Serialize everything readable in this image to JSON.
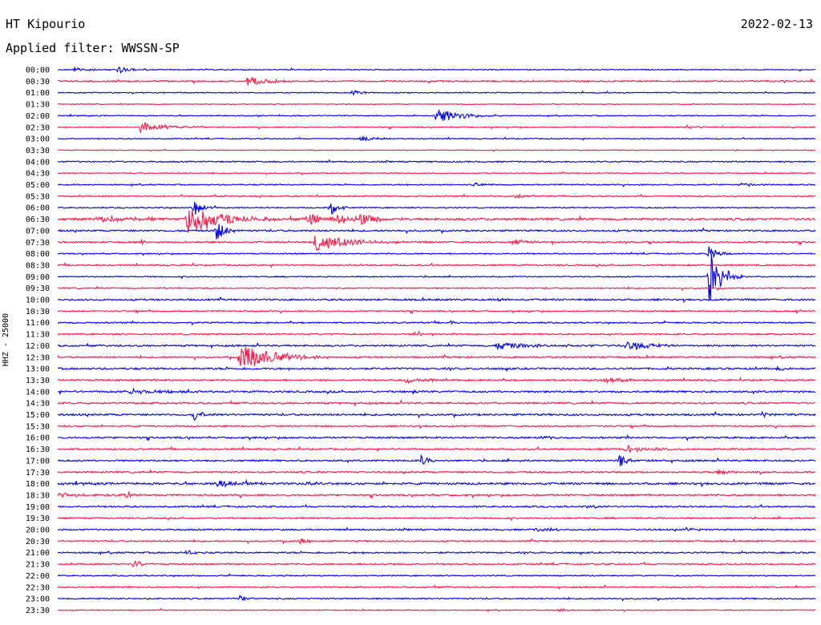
{
  "header": {
    "station": "HT Kipourio",
    "date": "2022-02-13",
    "filter_text": "Applied filter: WWSSN-SP"
  },
  "chart_data": {
    "type": "line",
    "title": "HT Kipourio",
    "subtitle": "Applied filter: WWSSN-SP",
    "ylabel": "HHZ - 25000",
    "xlabel": "",
    "grid": false,
    "series_colors": [
      "#0000ee",
      "#ff1744"
    ],
    "rows": [
      {
        "label": "00:00",
        "color": "#0000ee",
        "noise": 0.6,
        "events": [
          {
            "t": 0.02,
            "amp": 3,
            "dur": 0.02
          },
          {
            "t": 0.08,
            "amp": 4,
            "dur": 0.02
          }
        ]
      },
      {
        "label": "00:30",
        "color": "#ff1744",
        "noise": 0.9,
        "events": [
          {
            "t": 0.25,
            "amp": 6,
            "dur": 0.03
          },
          {
            "t": 0.3,
            "amp": 2,
            "dur": 0.01
          }
        ]
      },
      {
        "label": "01:00",
        "color": "#0000ee",
        "noise": 0.6,
        "events": [
          {
            "t": 0.39,
            "amp": 4,
            "dur": 0.01
          }
        ]
      },
      {
        "label": "01:30",
        "color": "#ff1744",
        "noise": 0.5,
        "events": []
      },
      {
        "label": "02:00",
        "color": "#0000ee",
        "noise": 0.6,
        "events": [
          {
            "t": 0.5,
            "amp": 10,
            "dur": 0.03
          }
        ]
      },
      {
        "label": "02:30",
        "color": "#ff1744",
        "noise": 0.7,
        "events": [
          {
            "t": 0.11,
            "amp": 7,
            "dur": 0.03
          },
          {
            "t": 0.83,
            "amp": 3,
            "dur": 0.01
          },
          {
            "t": 0.97,
            "amp": 2,
            "dur": 0.01
          }
        ]
      },
      {
        "label": "03:00",
        "color": "#0000ee",
        "noise": 0.6,
        "events": [
          {
            "t": 0.4,
            "amp": 3,
            "dur": 0.02
          }
        ]
      },
      {
        "label": "03:30",
        "color": "#ff1744",
        "noise": 0.5,
        "events": []
      },
      {
        "label": "04:00",
        "color": "#0000ee",
        "noise": 0.8,
        "events": []
      },
      {
        "label": "04:30",
        "color": "#ff1744",
        "noise": 0.6,
        "events": []
      },
      {
        "label": "05:00",
        "color": "#0000ee",
        "noise": 0.7,
        "events": [
          {
            "t": 0.55,
            "amp": 3,
            "dur": 0.01
          },
          {
            "t": 0.9,
            "amp": 2,
            "dur": 0.02
          }
        ]
      },
      {
        "label": "05:30",
        "color": "#ff1744",
        "noise": 0.8,
        "events": [
          {
            "t": 0.6,
            "amp": 3,
            "dur": 0.02
          }
        ]
      },
      {
        "label": "06:00",
        "color": "#0000ee",
        "noise": 0.7,
        "events": [
          {
            "t": 0.18,
            "amp": 12,
            "dur": 0.01
          },
          {
            "t": 0.36,
            "amp": 10,
            "dur": 0.01
          }
        ]
      },
      {
        "label": "06:30",
        "color": "#ff1744",
        "noise": 1.4,
        "events": [
          {
            "t": 0.05,
            "amp": 4,
            "dur": 0.06
          },
          {
            "t": 0.17,
            "amp": 22,
            "dur": 0.04
          },
          {
            "t": 0.33,
            "amp": 9,
            "dur": 0.02
          },
          {
            "t": 0.37,
            "amp": 9,
            "dur": 0.02
          },
          {
            "t": 0.4,
            "amp": 8,
            "dur": 0.02
          }
        ]
      },
      {
        "label": "07:00",
        "color": "#0000ee",
        "noise": 1.0,
        "events": [
          {
            "t": 0.21,
            "amp": 14,
            "dur": 0.01
          }
        ]
      },
      {
        "label": "07:30",
        "color": "#ff1744",
        "noise": 1.0,
        "events": [
          {
            "t": 0.11,
            "amp": 3,
            "dur": 0.01
          },
          {
            "t": 0.34,
            "amp": 12,
            "dur": 0.04
          },
          {
            "t": 0.6,
            "amp": 4,
            "dur": 0.02
          },
          {
            "t": 0.78,
            "amp": 2,
            "dur": 0.02
          }
        ]
      },
      {
        "label": "08:00",
        "color": "#0000ee",
        "noise": 0.7,
        "events": [
          {
            "t": 0.86,
            "amp": 14,
            "dur": 0.01
          }
        ]
      },
      {
        "label": "08:30",
        "color": "#ff1744",
        "noise": 0.9,
        "events": []
      },
      {
        "label": "09:00",
        "color": "#0000ee",
        "noise": 0.7,
        "events": [
          {
            "t": 0.86,
            "amp": 36,
            "dur": 0.015
          }
        ]
      },
      {
        "label": "09:30",
        "color": "#ff1744",
        "noise": 0.8,
        "events": [
          {
            "t": 0.14,
            "amp": 2,
            "dur": 0.01
          }
        ]
      },
      {
        "label": "10:00",
        "color": "#0000ee",
        "noise": 1.0,
        "events": [
          {
            "t": 0.58,
            "amp": 3,
            "dur": 0.01
          }
        ]
      },
      {
        "label": "10:30",
        "color": "#ff1744",
        "noise": 0.8,
        "events": [
          {
            "t": 0.97,
            "amp": 3,
            "dur": 0.01
          }
        ]
      },
      {
        "label": "11:00",
        "color": "#0000ee",
        "noise": 0.8,
        "events": [
          {
            "t": 0.52,
            "amp": 3,
            "dur": 0.01
          }
        ]
      },
      {
        "label": "11:30",
        "color": "#ff1744",
        "noise": 0.9,
        "events": [
          {
            "t": 0.47,
            "amp": 4,
            "dur": 0.02
          }
        ]
      },
      {
        "label": "12:00",
        "color": "#0000ee",
        "noise": 1.0,
        "events": [
          {
            "t": 0.58,
            "amp": 4,
            "dur": 0.05
          },
          {
            "t": 0.75,
            "amp": 6,
            "dur": 0.03
          }
        ]
      },
      {
        "label": "12:30",
        "color": "#ff1744",
        "noise": 1.0,
        "events": [
          {
            "t": 0.24,
            "amp": 18,
            "dur": 0.04
          }
        ]
      },
      {
        "label": "13:00",
        "color": "#0000ee",
        "noise": 1.1,
        "events": [
          {
            "t": 0.95,
            "amp": 3,
            "dur": 0.01
          }
        ]
      },
      {
        "label": "13:30",
        "color": "#ff1744",
        "noise": 1.0,
        "events": [
          {
            "t": 0.46,
            "amp": 4,
            "dur": 0.02
          },
          {
            "t": 0.72,
            "amp": 3,
            "dur": 0.03
          }
        ]
      },
      {
        "label": "14:00",
        "color": "#0000ee",
        "noise": 1.1,
        "events": [
          {
            "t": 0.09,
            "amp": 3,
            "dur": 0.05
          },
          {
            "t": 0.47,
            "amp": 3,
            "dur": 0.01
          }
        ]
      },
      {
        "label": "14:30",
        "color": "#ff1744",
        "noise": 1.1,
        "events": []
      },
      {
        "label": "15:00",
        "color": "#0000ee",
        "noise": 1.1,
        "events": [
          {
            "t": 0.18,
            "amp": 8,
            "dur": 0.01
          },
          {
            "t": 0.93,
            "amp": 3,
            "dur": 0.01
          }
        ]
      },
      {
        "label": "15:30",
        "color": "#ff1744",
        "noise": 0.9,
        "events": []
      },
      {
        "label": "16:00",
        "color": "#0000ee",
        "noise": 1.0,
        "events": [
          {
            "t": 0.64,
            "amp": 3,
            "dur": 0.01
          }
        ]
      },
      {
        "label": "16:30",
        "color": "#ff1744",
        "noise": 1.0,
        "events": [
          {
            "t": 0.75,
            "amp": 4,
            "dur": 0.03
          }
        ]
      },
      {
        "label": "17:00",
        "color": "#0000ee",
        "noise": 1.0,
        "events": [
          {
            "t": 0.48,
            "amp": 7,
            "dur": 0.01
          },
          {
            "t": 0.74,
            "amp": 7,
            "dur": 0.02
          }
        ]
      },
      {
        "label": "17:30",
        "color": "#ff1744",
        "noise": 1.0,
        "events": [
          {
            "t": 0.87,
            "amp": 3,
            "dur": 0.02
          }
        ]
      },
      {
        "label": "18:00",
        "color": "#0000ee",
        "noise": 1.2,
        "events": [
          {
            "t": 0.21,
            "amp": 6,
            "dur": 0.02
          },
          {
            "t": 0.33,
            "amp": 3,
            "dur": 0.01
          }
        ]
      },
      {
        "label": "18:30",
        "color": "#ff1744",
        "noise": 1.1,
        "events": [
          {
            "t": 0.0,
            "amp": 3,
            "dur": 0.04
          },
          {
            "t": 0.09,
            "amp": 5,
            "dur": 0.01
          }
        ]
      },
      {
        "label": "19:00",
        "color": "#0000ee",
        "noise": 0.9,
        "events": [
          {
            "t": 0.7,
            "amp": 3,
            "dur": 0.01
          }
        ]
      },
      {
        "label": "19:30",
        "color": "#ff1744",
        "noise": 0.9,
        "events": []
      },
      {
        "label": "20:00",
        "color": "#0000ee",
        "noise": 0.9,
        "events": [
          {
            "t": 0.63,
            "amp": 3,
            "dur": 0.02
          },
          {
            "t": 0.83,
            "amp": 3,
            "dur": 0.01
          }
        ]
      },
      {
        "label": "20:30",
        "color": "#ff1744",
        "noise": 0.9,
        "events": [
          {
            "t": 0.32,
            "amp": 4,
            "dur": 0.01
          }
        ]
      },
      {
        "label": "21:00",
        "color": "#0000ee",
        "noise": 0.9,
        "events": [
          {
            "t": 0.17,
            "amp": 3,
            "dur": 0.01
          }
        ]
      },
      {
        "label": "21:30",
        "color": "#ff1744",
        "noise": 0.9,
        "events": [
          {
            "t": 0.1,
            "amp": 6,
            "dur": 0.01
          }
        ]
      },
      {
        "label": "22:00",
        "color": "#0000ee",
        "noise": 0.7,
        "events": []
      },
      {
        "label": "22:30",
        "color": "#ff1744",
        "noise": 0.8,
        "events": []
      },
      {
        "label": "23:00",
        "color": "#0000ee",
        "noise": 0.8,
        "events": [
          {
            "t": 0.24,
            "amp": 4,
            "dur": 0.01
          }
        ]
      },
      {
        "label": "23:30",
        "color": "#ff1744",
        "noise": 0.6,
        "events": [
          {
            "t": 0.66,
            "amp": 3,
            "dur": 0.01
          }
        ]
      }
    ]
  }
}
